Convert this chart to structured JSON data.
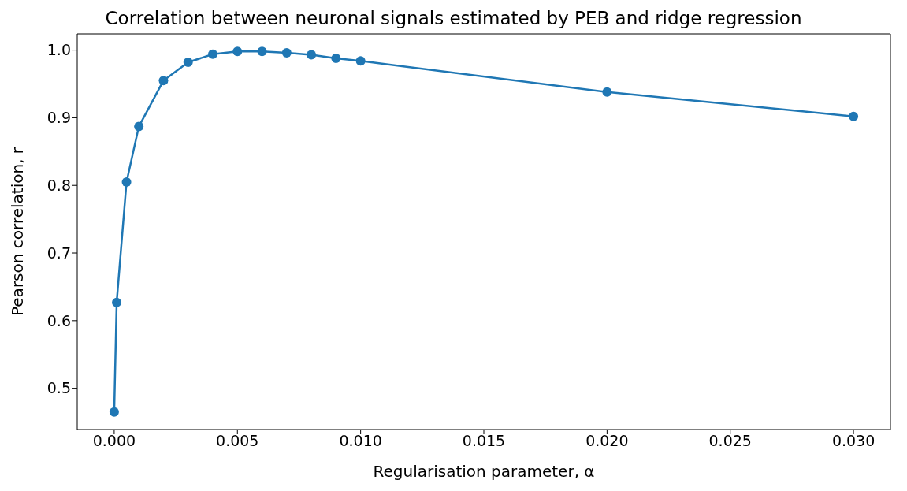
{
  "chart_data": {
    "type": "line",
    "title": "Correlation between neuronal signals estimated by PEB and ridge regression",
    "xlabel": "Regularisation parameter, α",
    "ylabel": "Pearson correlation, r",
    "x": [
      0,
      0.0001,
      0.0005,
      0.001,
      0.002,
      0.003,
      0.004,
      0.005,
      0.006,
      0.007,
      0.008,
      0.009,
      0.01,
      0.02,
      0.03
    ],
    "series": [
      {
        "color": "#1f77b4",
        "values": [
          0.465,
          0.627,
          0.805,
          0.887,
          0.955,
          0.982,
          0.994,
          0.998,
          0.998,
          0.996,
          0.993,
          0.988,
          0.984,
          0.938,
          0.902
        ]
      }
    ],
    "xlim": [
      -0.0015,
      0.0315
    ],
    "xticks": [
      {
        "value": 0,
        "label": "0.000"
      },
      {
        "value": 0.005,
        "label": "0.005"
      },
      {
        "value": 0.01,
        "label": "0.010"
      },
      {
        "value": 0.015,
        "label": "0.015"
      },
      {
        "value": 0.02,
        "label": "0.020"
      },
      {
        "value": 0.025,
        "label": "0.025"
      },
      {
        "value": 0.03,
        "label": "0.030"
      }
    ],
    "ylim": [
      0.439,
      1.024
    ],
    "yticks": [
      {
        "value": 0.5,
        "label": "0.5"
      },
      {
        "value": 0.6,
        "label": "0.6"
      },
      {
        "value": 0.7,
        "label": "0.7"
      },
      {
        "value": 0.8,
        "label": "0.8"
      },
      {
        "value": 0.9,
        "label": "0.9"
      },
      {
        "value": 1.0,
        "label": "1.0"
      }
    ],
    "marker": "circle",
    "grid": false,
    "legend": false
  }
}
